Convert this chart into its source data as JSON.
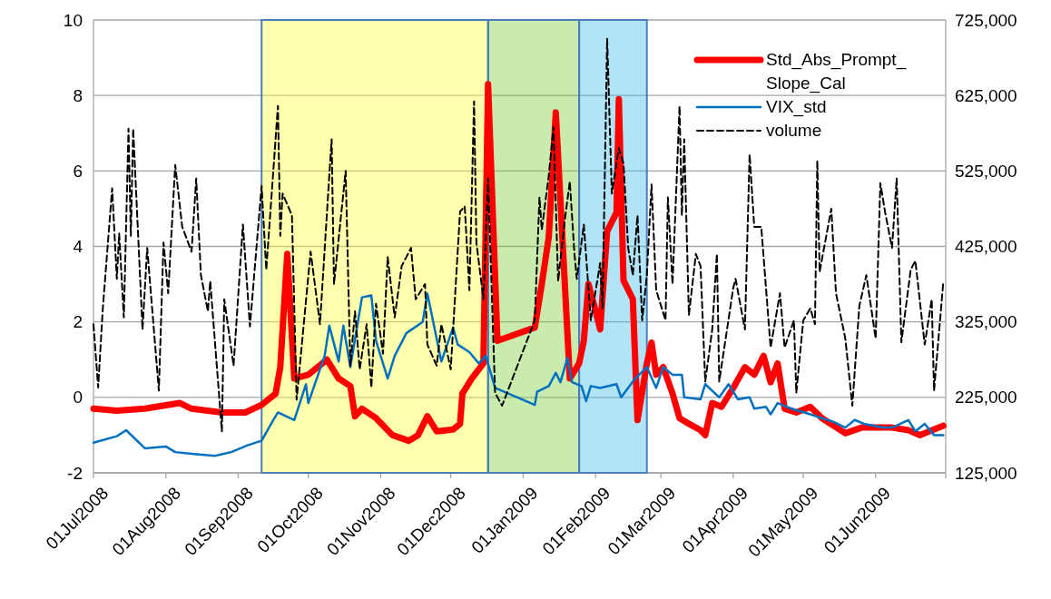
{
  "chart_data": {
    "type": "line",
    "xlim": [
      "2008-07-01",
      "2009-07-01"
    ],
    "xticks": [
      {
        "value": "2008-07-01",
        "label": "01Jul2008"
      },
      {
        "value": "2008-08-01",
        "label": "01Aug2008"
      },
      {
        "value": "2008-09-01",
        "label": "01Sep2008"
      },
      {
        "value": "2008-10-01",
        "label": "01Oct2008"
      },
      {
        "value": "2008-11-01",
        "label": "01Nov2008"
      },
      {
        "value": "2008-12-01",
        "label": "01Dec2008"
      },
      {
        "value": "2009-01-01",
        "label": "01Jan2009"
      },
      {
        "value": "2009-02-01",
        "label": "01Feb2009"
      },
      {
        "value": "2009-03-01",
        "label": "01Mar2009"
      },
      {
        "value": "2009-04-01",
        "label": "01Apr2009"
      },
      {
        "value": "2009-05-01",
        "label": "01May2009"
      },
      {
        "value": "2009-06-01",
        "label": "01Jun2009"
      },
      {
        "value": "2009-07-01",
        "label": null
      }
    ],
    "ylim": [
      -2,
      10
    ],
    "yticks": [
      -2,
      0,
      2,
      4,
      6,
      8,
      10
    ],
    "y2lim": [
      125000,
      725000
    ],
    "y2ticks": [
      {
        "value": 125000,
        "label": "125,000"
      },
      {
        "value": 225000,
        "label": "225,000"
      },
      {
        "value": 325000,
        "label": "325,000"
      },
      {
        "value": 425000,
        "label": "425,000"
      },
      {
        "value": 525000,
        "label": "525,000"
      },
      {
        "value": 625000,
        "label": "625,000"
      },
      {
        "value": 725000,
        "label": "725,000"
      }
    ],
    "grid": "y",
    "legend": "top right",
    "series": [
      {
        "name": "Std_Abs_Prompt_Slope_Cal",
        "color": "#ff0000",
        "line_style": "solid",
        "x": [
          "2008-07-01",
          "2008-07-11",
          "2008-07-23",
          "2008-08-07",
          "2008-08-12",
          "2008-08-25",
          "2008-09-04",
          "2008-09-11",
          "2008-09-17",
          "2008-09-19",
          "2008-09-22",
          "2008-09-25",
          "2008-10-01",
          "2008-10-09",
          "2008-10-14",
          "2008-10-19",
          "2008-10-21",
          "2008-10-24",
          "2008-10-30",
          "2008-11-06",
          "2008-11-13",
          "2008-11-17",
          "2008-11-21",
          "2008-11-25",
          "2008-12-02",
          "2008-12-05",
          "2008-12-06",
          "2008-12-10",
          "2008-12-15",
          "2008-12-17",
          "2008-12-21",
          "2009-01-06",
          "2009-01-09",
          "2009-01-12",
          "2009-01-15",
          "2009-01-21",
          "2009-01-25",
          "2009-01-27",
          "2009-01-29",
          "2009-02-01",
          "2009-02-03",
          "2009-02-06",
          "2009-02-10",
          "2009-02-11",
          "2009-02-13",
          "2009-02-17",
          "2009-02-19",
          "2009-02-23",
          "2009-02-25",
          "2009-02-27",
          "2009-03-02",
          "2009-03-06",
          "2009-03-09",
          "2009-03-13",
          "2009-03-18",
          "2009-03-20",
          "2009-03-23",
          "2009-03-27",
          "2009-04-01",
          "2009-04-06",
          "2009-04-10",
          "2009-04-14",
          "2009-04-17",
          "2009-04-20",
          "2009-04-23",
          "2009-04-28",
          "2009-05-04",
          "2009-05-09",
          "2009-05-19",
          "2009-05-26",
          "2009-06-08",
          "2009-06-15",
          "2009-06-20",
          "2009-06-30"
        ],
        "values": [
          -0.3,
          -0.35,
          -0.3,
          -0.15,
          -0.3,
          -0.4,
          -0.4,
          -0.2,
          0.1,
          0.8,
          3.8,
          0.5,
          0.6,
          1.0,
          0.5,
          0.3,
          -0.5,
          -0.3,
          -0.55,
          -1.0,
          -1.15,
          -1.0,
          -0.5,
          -0.9,
          -0.85,
          -0.7,
          0.1,
          0.5,
          0.9,
          8.3,
          1.5,
          1.85,
          3.0,
          4.25,
          7.55,
          0.5,
          0.9,
          1.5,
          3.0,
          2.3,
          1.8,
          4.4,
          4.9,
          7.9,
          3.1,
          2.6,
          -0.6,
          0.9,
          1.45,
          0.6,
          0.8,
          0.1,
          -0.55,
          -0.7,
          -0.87,
          -1.0,
          -0.15,
          -0.25,
          0.25,
          0.8,
          0.6,
          1.1,
          0.4,
          0.9,
          -0.3,
          -0.4,
          -0.25,
          -0.55,
          -0.95,
          -0.8,
          -0.8,
          -0.87,
          -1.0,
          -0.75
        ]
      },
      {
        "name": "VIX_std",
        "color": "#0070c0",
        "line_style": "solid",
        "x": [
          "2008-07-01",
          "2008-07-11",
          "2008-07-15",
          "2008-07-23",
          "2008-08-01",
          "2008-08-05",
          "2008-08-13",
          "2008-08-22",
          "2008-08-29",
          "2008-09-05",
          "2008-09-11",
          "2008-09-16",
          "2008-09-18",
          "2008-09-25",
          "2008-09-30",
          "2008-10-01",
          "2008-10-08",
          "2008-10-10",
          "2008-10-14",
          "2008-10-16",
          "2008-10-19",
          "2008-10-24",
          "2008-10-28",
          "2008-10-30",
          "2008-11-04",
          "2008-11-07",
          "2008-11-12",
          "2008-11-19",
          "2008-11-21",
          "2008-11-27",
          "2008-12-02",
          "2008-12-04",
          "2008-12-09",
          "2008-12-13",
          "2008-12-16",
          "2008-12-20",
          "2009-01-06",
          "2009-01-07",
          "2009-01-12",
          "2009-01-15",
          "2009-01-17",
          "2009-01-20",
          "2009-01-22",
          "2009-01-26",
          "2009-01-28",
          "2009-01-30",
          "2009-02-03",
          "2009-02-10",
          "2009-02-12",
          "2009-02-18",
          "2009-02-23",
          "2009-02-27",
          "2009-03-02",
          "2009-03-06",
          "2009-03-10",
          "2009-03-11",
          "2009-03-18",
          "2009-03-20",
          "2009-03-26",
          "2009-03-30",
          "2009-04-03",
          "2009-04-08",
          "2009-04-10",
          "2009-04-15",
          "2009-04-17",
          "2009-04-20",
          "2009-04-26",
          "2009-05-04",
          "2009-05-09",
          "2009-05-14",
          "2009-05-19",
          "2009-05-23",
          "2009-05-27",
          "2009-06-04",
          "2009-06-08",
          "2009-06-15",
          "2009-06-18",
          "2009-06-22",
          "2009-06-26",
          "2009-06-30"
        ],
        "values": [
          -1.2,
          -1.03,
          -0.87,
          -1.35,
          -1.3,
          -1.45,
          -1.5,
          -1.55,
          -1.45,
          -1.27,
          -1.15,
          -0.6,
          -0.4,
          -0.6,
          0.35,
          -0.15,
          1.1,
          1.9,
          0.95,
          1.9,
          0.8,
          2.65,
          2.7,
          1.5,
          0.5,
          1.1,
          1.7,
          2.0,
          2.75,
          0.95,
          1.85,
          1.4,
          1.2,
          0.9,
          1.1,
          0.25,
          -0.2,
          0.15,
          0.3,
          0.65,
          0.4,
          1.05,
          0.4,
          0.3,
          -0.1,
          0.3,
          0.25,
          0.35,
          0,
          0.5,
          0.8,
          0.25,
          0.8,
          0.6,
          0.6,
          0,
          -0.05,
          0.35,
          0,
          0.35,
          -0.05,
          0,
          -0.3,
          -0.25,
          -0.45,
          -0.15,
          -0.3,
          -0.45,
          -0.55,
          -0.65,
          -0.8,
          -0.6,
          -0.7,
          -0.8,
          -0.8,
          -0.6,
          -0.9,
          -0.7,
          -1.0,
          -1.0
        ]
      },
      {
        "name": "volume",
        "color": "#000000",
        "line_style": "dashed",
        "axis": "y2",
        "x": [
          "2008-07-01",
          "2008-07-03",
          "2008-07-05",
          "2008-07-09",
          "2008-07-11",
          "2008-07-12",
          "2008-07-14",
          "2008-07-16",
          "2008-07-17",
          "2008-07-18",
          "2008-07-22",
          "2008-07-24",
          "2008-07-29",
          "2008-07-31",
          "2008-08-02",
          "2008-08-05",
          "2008-08-08",
          "2008-08-12",
          "2008-08-14",
          "2008-08-16",
          "2008-08-19",
          "2008-08-20",
          "2008-08-25",
          "2008-08-26",
          "2008-08-30",
          "2008-09-03",
          "2008-09-06",
          "2008-09-11",
          "2008-09-13",
          "2008-09-18",
          "2008-09-19",
          "2008-09-20",
          "2008-09-24",
          "2008-09-26",
          "2008-10-02",
          "2008-10-06",
          "2008-10-10",
          "2008-10-11",
          "2008-10-12",
          "2008-10-17",
          "2008-10-19",
          "2008-10-21",
          "2008-10-23",
          "2008-10-26",
          "2008-10-28",
          "2008-10-30",
          "2008-11-02",
          "2008-11-04",
          "2008-11-07",
          "2008-11-10",
          "2008-11-14",
          "2008-11-16",
          "2008-11-20",
          "2008-11-21",
          "2008-11-25",
          "2008-11-27",
          "2008-12-01",
          "2008-12-05",
          "2008-12-07",
          "2008-12-09",
          "2008-12-11",
          "2008-12-12",
          "2008-12-15",
          "2008-12-17",
          "2008-12-20",
          "2008-12-23",
          "2009-01-06",
          "2009-01-08",
          "2009-01-09",
          "2009-01-12",
          "2009-01-14",
          "2009-01-16",
          "2009-01-19",
          "2009-01-21",
          "2009-01-23",
          "2009-01-24",
          "2009-01-27",
          "2009-01-30",
          "2009-02-03",
          "2009-02-04",
          "2009-02-06",
          "2009-02-08",
          "2009-02-11",
          "2009-02-13",
          "2009-02-15",
          "2009-02-17",
          "2009-02-19",
          "2009-02-21",
          "2009-02-23",
          "2009-02-25",
          "2009-02-27",
          "2009-03-03",
          "2009-03-04",
          "2009-03-06",
          "2009-03-09",
          "2009-03-10",
          "2009-03-11",
          "2009-03-13",
          "2009-03-16",
          "2009-03-18",
          "2009-03-20",
          "2009-03-23",
          "2009-03-25",
          "2009-03-26",
          "2009-04-01",
          "2009-04-02",
          "2009-04-06",
          "2009-04-08",
          "2009-04-10",
          "2009-04-13",
          "2009-04-17",
          "2009-04-21",
          "2009-04-23",
          "2009-04-27",
          "2009-04-28",
          "2009-05-01",
          "2009-05-04",
          "2009-05-06",
          "2009-05-07",
          "2009-05-08",
          "2009-05-13",
          "2009-05-15",
          "2009-05-19",
          "2009-05-22",
          "2009-05-25",
          "2009-05-28",
          "2009-06-01",
          "2009-06-03",
          "2009-06-05",
          "2009-06-08",
          "2009-06-10",
          "2009-06-12",
          "2009-06-16",
          "2009-06-18",
          "2009-06-22",
          "2009-06-25",
          "2009-06-26",
          "2009-06-30"
        ],
        "values": [
          322000,
          238000,
          343000,
          502000,
          382000,
          442000,
          331000,
          581000,
          439000,
          581000,
          315000,
          423000,
          234000,
          430000,
          363000,
          533000,
          451000,
          418000,
          515000,
          387000,
          339000,
          379000,
          180000,
          355000,
          267000,
          454000,
          319000,
          505000,
          394000,
          611000,
          439000,
          495000,
          466000,
          222000,
          418000,
          322000,
          519000,
          567000,
          375000,
          525000,
          267000,
          339000,
          262000,
          322000,
          238000,
          349000,
          283000,
          411000,
          331000,
          399000,
          423000,
          355000,
          375000,
          295000,
          267000,
          322000,
          262000,
          471000,
          478000,
          367000,
          617000,
          430000,
          355000,
          515000,
          231000,
          214000,
          327000,
          490000,
          447000,
          519000,
          583000,
          379000,
          463000,
          511000,
          415000,
          382000,
          454000,
          327000,
          403000,
          343000,
          700000,
          495000,
          555000,
          535000,
          423000,
          387000,
          466000,
          327000,
          387000,
          507000,
          367000,
          327000,
          490000,
          375000,
          611000,
          466000,
          567000,
          334000,
          415000,
          399000,
          246000,
          315000,
          415000,
          246000,
          370000,
          382000,
          315000,
          547000,
          451000,
          451000,
          291000,
          363000,
          291000,
          327000,
          231000,
          327000,
          343000,
          322000,
          539000,
          391000,
          475000,
          363000,
          303000,
          214000,
          346000,
          387000,
          303000,
          509000,
          471000,
          423000,
          515000,
          298000,
          394000,
          406000,
          295000,
          355000,
          234000,
          379000
        ]
      }
    ],
    "bands": [
      {
        "axis": "x",
        "from": "2008-09-11",
        "to": "2008-12-17",
        "color": "#ffff34"
      },
      {
        "axis": "x",
        "from": "2008-12-17",
        "to": "2009-01-25",
        "color": "#78cf34"
      },
      {
        "axis": "x",
        "from": "2009-01-25",
        "to": "2009-02-23",
        "color": "#39bbe8"
      }
    ]
  }
}
